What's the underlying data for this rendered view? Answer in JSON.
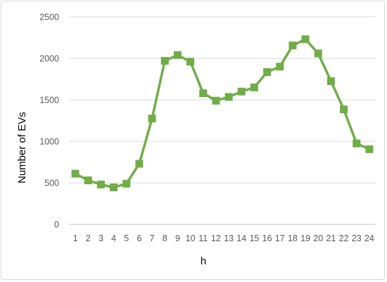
{
  "chart_data": {
    "type": "line",
    "title": "",
    "xlabel": "h",
    "ylabel": "Number of EVs",
    "categories": [
      "1",
      "2",
      "3",
      "4",
      "5",
      "6",
      "7",
      "8",
      "9",
      "10",
      "11",
      "12",
      "13",
      "14",
      "15",
      "16",
      "17",
      "18",
      "19",
      "20",
      "21",
      "22",
      "23",
      "24"
    ],
    "series": [
      {
        "values": [
          610,
          530,
          480,
          445,
          490,
          730,
          1275,
          1970,
          2040,
          1960,
          1580,
          1490,
          1535,
          1600,
          1650,
          1835,
          1900,
          2155,
          2230,
          2060,
          1725,
          1385,
          975,
          905
        ]
      }
    ],
    "ylim": [
      0,
      2500
    ],
    "yticks": [
      "0",
      "500",
      "1000",
      "1500",
      "2000",
      "2500"
    ],
    "grid": "horizontal",
    "legend": "none",
    "colors": {
      "series": "#70ad47",
      "grid": "#d9d9d9",
      "axis": "#bfbfbf"
    }
  }
}
